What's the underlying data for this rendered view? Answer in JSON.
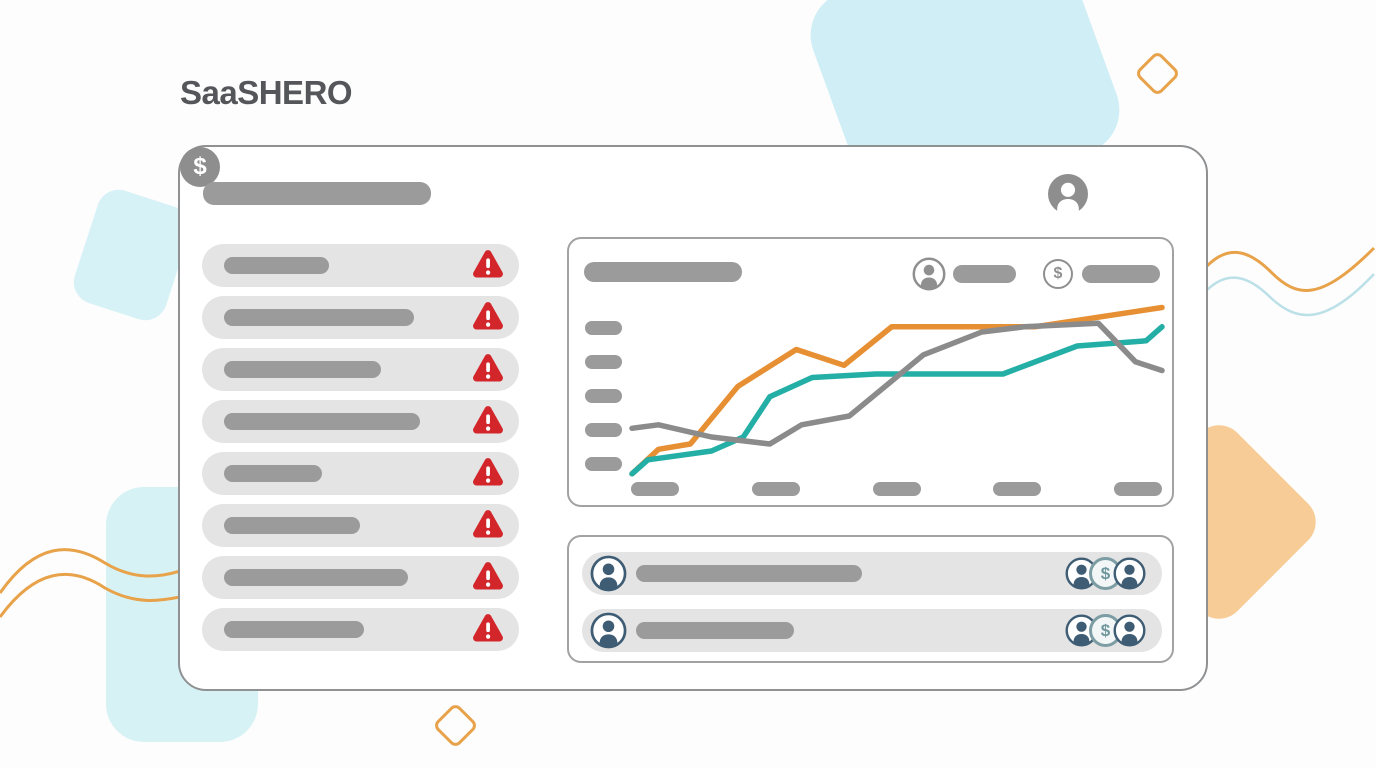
{
  "logo": {
    "text": "SaaSHERO"
  },
  "dollar_symbol": "$",
  "colors": {
    "accent_orange": "#E78F33",
    "teal": "#23AEA6",
    "line_gray": "#8B8B8B",
    "alert_red": "#D2262B",
    "slate_icon": "#3E5D74",
    "badge_teal": "#7B9DA3",
    "icon_gray": "#8E8E8E",
    "placeholder_bar_gray": "#9B9B9B",
    "row_background": "#E4E4E4",
    "decor_blue": "#CFEEF5",
    "decor_peach": "#F8CC96",
    "decor_line_orange": "#E7A24A",
    "decor_line_blue": "#BCE0E8"
  },
  "header": {
    "title_placeholder_width": 228,
    "icons": [
      {
        "name": "user-icon"
      },
      {
        "name": "dollar-icon"
      }
    ]
  },
  "sidebar": {
    "items": [
      {
        "placeholder_width": 105,
        "alert": true
      },
      {
        "placeholder_width": 190,
        "alert": true
      },
      {
        "placeholder_width": 157,
        "alert": true
      },
      {
        "placeholder_width": 196,
        "alert": true
      },
      {
        "placeholder_width": 98,
        "alert": true
      },
      {
        "placeholder_width": 136,
        "alert": true
      },
      {
        "placeholder_width": 184,
        "alert": true
      },
      {
        "placeholder_width": 140,
        "alert": true
      }
    ]
  },
  "chart_panel": {
    "title_placeholder_width": 158,
    "legend": [
      {
        "icon": "user-icon",
        "placeholder_width": 63
      },
      {
        "icon": "dollar-icon",
        "placeholder_width": 78
      }
    ],
    "y_tick_count": 5,
    "x_tick_count": 5
  },
  "chart_data": {
    "type": "line",
    "title": "",
    "xlabel": "",
    "ylabel": "",
    "x_range": [
      0,
      100
    ],
    "y_range": [
      0,
      100
    ],
    "grid": false,
    "legend_position": "top-right",
    "note": "wireframe mockup chart; axis tick labels are blank placeholder pills",
    "series": [
      {
        "name": "orange-series",
        "color": "#E78F33",
        "points": [
          [
            0,
            3
          ],
          [
            5,
            17
          ],
          [
            11,
            20
          ],
          [
            20,
            53
          ],
          [
            31,
            74
          ],
          [
            40,
            65
          ],
          [
            49,
            87
          ],
          [
            76,
            87
          ],
          [
            100,
            98
          ]
        ]
      },
      {
        "name": "teal-series",
        "color": "#23AEA6",
        "points": [
          [
            0,
            3
          ],
          [
            3,
            11
          ],
          [
            15,
            16
          ],
          [
            21,
            24
          ],
          [
            26,
            47
          ],
          [
            34,
            58
          ],
          [
            46,
            60
          ],
          [
            70,
            60
          ],
          [
            84,
            76
          ],
          [
            97,
            79
          ],
          [
            100,
            87
          ]
        ]
      },
      {
        "name": "gray-series",
        "color": "#8B8B8B",
        "points": [
          [
            0,
            29
          ],
          [
            5,
            31
          ],
          [
            15,
            24
          ],
          [
            26,
            20
          ],
          [
            32,
            31
          ],
          [
            41,
            36
          ],
          [
            55,
            71
          ],
          [
            66,
            84
          ],
          [
            74,
            87
          ],
          [
            88,
            89
          ],
          [
            95,
            67
          ],
          [
            100,
            62
          ]
        ]
      }
    ]
  },
  "bottom_panel": {
    "rows": [
      {
        "avatar": "user-icon",
        "placeholder_width": 226,
        "badges": [
          "user-icon",
          "dollar-icon",
          "user-icon"
        ]
      },
      {
        "avatar": "user-icon",
        "placeholder_width": 158,
        "badges": [
          "user-icon",
          "dollar-icon",
          "user-icon"
        ]
      }
    ]
  }
}
